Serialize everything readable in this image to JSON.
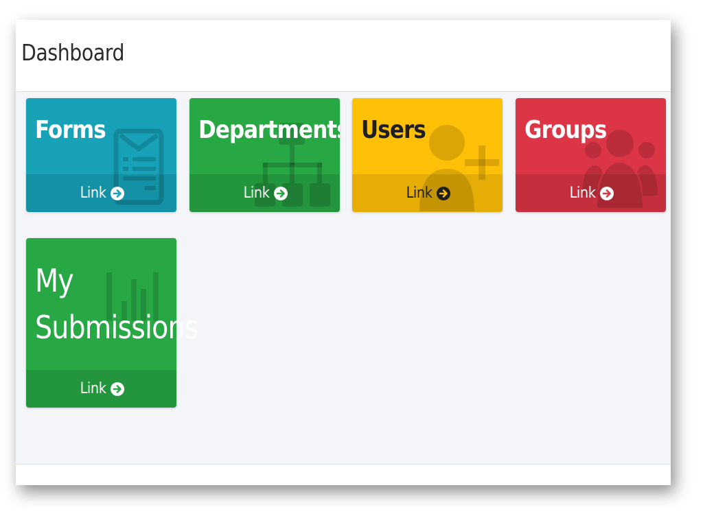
{
  "page": {
    "title": "Dashboard"
  },
  "cards": [
    {
      "id": "forms",
      "title": "Forms",
      "link_label": "Link",
      "color": "#17a2b8",
      "text_color": "#ffffff",
      "icon": "form-icon"
    },
    {
      "id": "departments",
      "title": "Departments",
      "link_label": "Link",
      "color": "#28a745",
      "text_color": "#ffffff",
      "icon": "org-chart-icon"
    },
    {
      "id": "users",
      "title": "Users",
      "link_label": "Link",
      "color": "#ffc107",
      "text_color": "#1f1f1f",
      "icon": "add-user-icon"
    },
    {
      "id": "groups",
      "title": "Groups",
      "link_label": "Link",
      "color": "#dc3545",
      "text_color": "#ffffff",
      "icon": "users-group-icon"
    },
    {
      "id": "my-submissions",
      "title": "My Submissions",
      "link_label": "Link",
      "color": "#28a745",
      "text_color": "#ffffff",
      "icon": "bar-chart-icon"
    }
  ]
}
